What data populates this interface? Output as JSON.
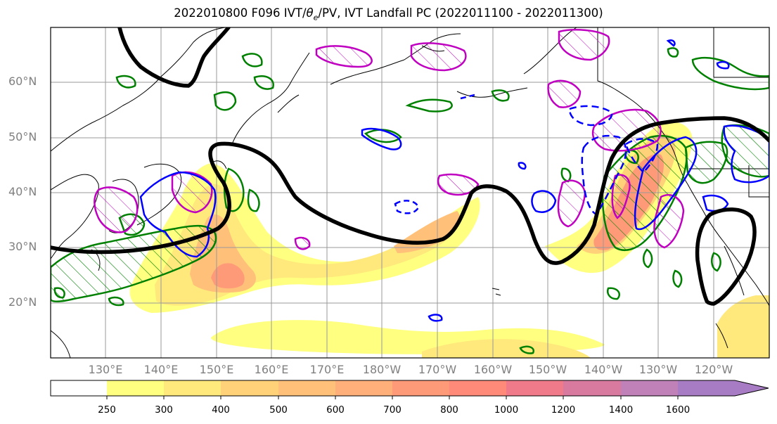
{
  "figure": {
    "title_prefix": "2022010800 F096 IVT/",
    "title_theta": "θ",
    "title_sub": "e",
    "title_suffix": "/PV, IVT Landfall PC (2022011100 - 2022011300)"
  },
  "map": {
    "projection": "cylindrical",
    "lon_range": [
      120,
      250
    ],
    "lat_range": [
      10,
      70
    ],
    "gridlines": true,
    "lat_labels": [
      "60°N",
      "50°N",
      "40°N",
      "30°N",
      "20°N"
    ],
    "lon_labels": [
      "130°E",
      "140°E",
      "150°E",
      "160°E",
      "170°E",
      "180°W",
      "170°W",
      "160°W",
      "150°W",
      "140°W",
      "130°W",
      "120°W"
    ],
    "layers": [
      {
        "field": "IVT",
        "style": "filled contours"
      },
      {
        "field": "theta_e",
        "style": "thick black contour",
        "color": "#000000"
      },
      {
        "field": "PV",
        "style": "magenta and blue contours",
        "colors": [
          "#c000c0",
          "#0000ff"
        ]
      },
      {
        "field": "IVT Landfall PC",
        "style": "green hatched contours",
        "color": "#008000"
      }
    ]
  },
  "colorbar": {
    "ticks": [
      "250",
      "300",
      "400",
      "500",
      "600",
      "700",
      "800",
      "1000",
      "1200",
      "1400",
      "1600"
    ],
    "colors": [
      "#ffffff",
      "#ffff80",
      "#ffe87c",
      "#ffd27a",
      "#ffc07a",
      "#ffb07a",
      "#ff9a78",
      "#ff8a7a",
      "#f07a8a",
      "#d87aa0",
      "#c080b8",
      "#a87cc4"
    ],
    "extend": "max"
  }
}
